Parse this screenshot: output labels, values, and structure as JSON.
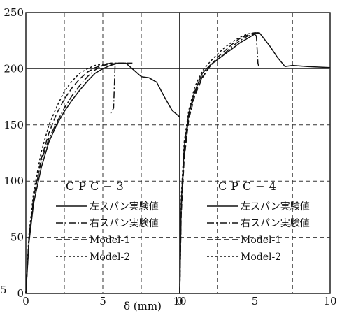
{
  "chart_data": [
    {
      "type": "line",
      "panel_label": "CPC−3",
      "xlim": [
        0,
        10
      ],
      "ylim": [
        0,
        250
      ],
      "y_ticks": [
        "0",
        "50",
        "100",
        "150",
        "200",
        "250"
      ],
      "x_ticks": [
        "0",
        "5",
        "10"
      ],
      "grid": "dashed",
      "series": [
        {
          "name": "左スパン実験値",
          "style": "solid",
          "x": [
            0,
            0.2,
            0.5,
            1.0,
            1.5,
            2.0,
            2.5,
            3.0,
            3.5,
            4.0,
            4.5,
            5.0,
            5.5,
            6.0,
            6.5,
            7.0,
            7.5,
            8.0,
            8.5,
            9.0,
            9.5,
            10.0
          ],
          "y": [
            0,
            45,
            80,
            112,
            135,
            150,
            162,
            172,
            181,
            189,
            196,
            200,
            203,
            205,
            205,
            199,
            193,
            192,
            188,
            175,
            163,
            157
          ]
        },
        {
          "name": "右スパン実験値",
          "style": "dashdot",
          "x": [
            0,
            0.2,
            0.5,
            1.0,
            1.5,
            2.0,
            2.5,
            3.0,
            3.5,
            4.0,
            4.5,
            5.0,
            5.5,
            5.8,
            5.7,
            5.5
          ],
          "y": [
            0,
            50,
            85,
            118,
            138,
            152,
            165,
            176,
            185,
            193,
            199,
            203,
            205,
            204,
            165,
            160
          ]
        },
        {
          "name": "Model-1",
          "style": "dashed",
          "x": [
            0,
            0.2,
            0.5,
            1.0,
            1.5,
            2.0,
            2.5,
            3.0,
            3.5,
            4.0,
            4.5,
            5.0,
            5.5,
            6.0,
            6.5,
            7.0
          ],
          "y": [
            0,
            48,
            85,
            120,
            143,
            160,
            173,
            183,
            191,
            197,
            201,
            203,
            204,
            205,
            205,
            205
          ]
        },
        {
          "name": "Model-2",
          "style": "dotted",
          "x": [
            0,
            0.2,
            0.5,
            1.0,
            1.5,
            2.0,
            2.5,
            3.0,
            3.5,
            4.0,
            4.5,
            5.0,
            5.5,
            6.0
          ],
          "y": [
            0,
            52,
            90,
            126,
            150,
            166,
            180,
            189,
            196,
            200,
            203,
            204,
            205,
            205
          ]
        }
      ]
    },
    {
      "type": "line",
      "panel_label": "CPC−4",
      "xlim": [
        0,
        10
      ],
      "ylim": [
        0,
        250
      ],
      "y_ticks": [],
      "x_ticks": [
        "0",
        "5",
        "10"
      ],
      "grid": "dashed",
      "series": [
        {
          "name": "左スパン実験値",
          "style": "solid",
          "x": [
            0,
            0.1,
            0.3,
            0.6,
            1.0,
            1.5,
            2.0,
            2.5,
            3.0,
            3.5,
            4.0,
            4.5,
            5.0,
            5.3,
            6.0,
            6.5,
            7.0,
            7.5,
            8.5,
            10.0
          ],
          "y": [
            0,
            80,
            130,
            160,
            180,
            196,
            203,
            208,
            213,
            218,
            223,
            227,
            231,
            232,
            220,
            210,
            202,
            203,
            202,
            201
          ]
        },
        {
          "name": "右スパン実験値",
          "style": "dashdot",
          "x": [
            0,
            0.1,
            0.3,
            0.6,
            1.0,
            1.5,
            2.0,
            2.5,
            3.0,
            3.5,
            4.0,
            4.5,
            5.0,
            5.1,
            5.2,
            5.3
          ],
          "y": [
            0,
            75,
            125,
            158,
            178,
            193,
            202,
            208,
            214,
            220,
            225,
            229,
            231,
            229,
            205,
            200
          ]
        },
        {
          "name": "Model-1",
          "style": "dashed",
          "x": [
            0,
            0.1,
            0.3,
            0.6,
            1.0,
            1.5,
            2.0,
            2.5,
            3.0,
            3.5,
            4.0,
            4.5,
            5.0,
            5.3
          ],
          "y": [
            0,
            70,
            120,
            155,
            176,
            192,
            202,
            210,
            216,
            222,
            227,
            230,
            232,
            232
          ]
        },
        {
          "name": "Model-2",
          "style": "dotted",
          "x": [
            0,
            0.1,
            0.3,
            0.6,
            1.0,
            1.5,
            2.0,
            2.5,
            3.0,
            3.5,
            4.0,
            4.5,
            5.0,
            5.3
          ],
          "y": [
            0,
            85,
            135,
            163,
            184,
            198,
            206,
            213,
            219,
            224,
            228,
            231,
            232,
            232
          ]
        }
      ]
    }
  ],
  "left_edge_ticks": [
    "5"
  ],
  "xlabel": "δ (mm)",
  "legend": [
    {
      "label": "左スパン実験値",
      "style": "solid"
    },
    {
      "label": "右スパン実験値",
      "style": "dashdot"
    },
    {
      "label": "Model-1",
      "style": "dashed"
    },
    {
      "label": "Model-2",
      "style": "dotted"
    }
  ],
  "colors": {
    "line": "#111111",
    "grid": "#333333",
    "background": "#ffffff"
  }
}
